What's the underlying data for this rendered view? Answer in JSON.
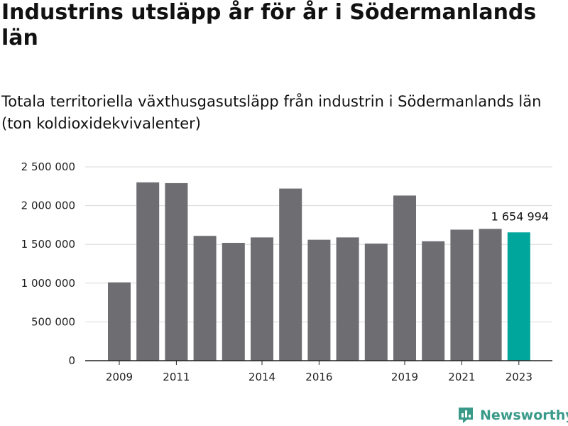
{
  "title": "Industrins utsläpp år för år i Södermanlands län",
  "subtitle": "Totala territoriella växthusgasutsläpp från industrin i Södermanlands län (ton koldioxidekvivalenter)",
  "brand": {
    "name": "Newsworthy",
    "icon": "newsworthy-logo-icon",
    "color": "#3a9a8a"
  },
  "colors": {
    "bar": "#6e6d72",
    "highlight": "#00a59b",
    "grid": "#d9d9d9",
    "axis": "#222222"
  },
  "chart_data": {
    "type": "bar",
    "title": "Industrins utsläpp år för år i Södermanlands län",
    "xlabel": "",
    "ylabel": "",
    "categories": [
      "2009",
      "2010",
      "2011",
      "2012",
      "2013",
      "2014",
      "2015",
      "2016",
      "2017",
      "2018",
      "2019",
      "2020",
      "2021",
      "2022",
      "2023"
    ],
    "values": [
      1010000,
      2300000,
      2290000,
      1610000,
      1520000,
      1590000,
      2220000,
      1560000,
      1590000,
      1510000,
      2130000,
      1540000,
      1690000,
      1700000,
      1654994
    ],
    "highlight_index": 14,
    "highlight_label": "1 654 994",
    "ylim": [
      0,
      2500000
    ],
    "yticks": [
      0,
      500000,
      1000000,
      1500000,
      2000000,
      2500000
    ],
    "ytick_labels": [
      "0",
      "500 000",
      "1 000 000",
      "1 500 000",
      "2 000 000",
      "2 500 000"
    ],
    "xtick_labels": [
      "2009",
      "2011",
      "2014",
      "2016",
      "2019",
      "2021",
      "2023"
    ],
    "grid": true,
    "legend": "none"
  }
}
